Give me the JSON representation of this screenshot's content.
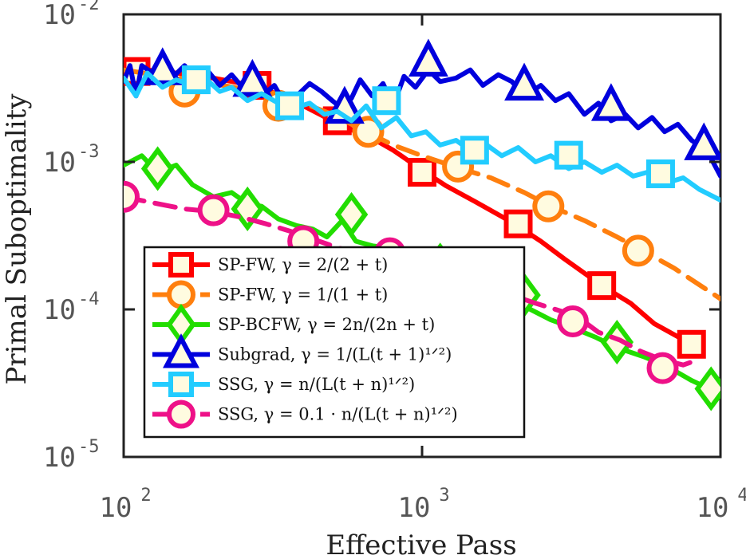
{
  "chart_data": {
    "type": "line",
    "xlabel": "Effective Pass",
    "ylabel": "Primal Suboptimality",
    "xscale": "log",
    "yscale": "log",
    "xlim": [
      100,
      10000
    ],
    "ylim": [
      1e-05,
      0.01
    ],
    "x_ticks": [
      {
        "base": "10",
        "exp": "2"
      },
      {
        "base": "10",
        "exp": "3"
      },
      {
        "base": "10",
        "exp": "4"
      }
    ],
    "y_ticks": [
      {
        "base": "10",
        "exp": "-2"
      },
      {
        "base": "10",
        "exp": "-3"
      },
      {
        "base": "10",
        "exp": "-4"
      },
      {
        "base": "10",
        "exp": "-5"
      }
    ],
    "legend_position": "lower-left",
    "series": [
      {
        "name": "SP-FW, γ = 2/(2 + t)",
        "color": "#ff0000",
        "dash": "solid",
        "marker": "square",
        "x": [
          100,
          120,
          150,
          200,
          250,
          300,
          350,
          400,
          500,
          600,
          700,
          800,
          1000,
          1200,
          1500,
          2000,
          2500,
          3000,
          4000,
          5000,
          6000,
          8000,
          8500
        ],
        "y": [
          0.0042,
          0.0042,
          0.004,
          0.0037,
          0.0034,
          0.0031,
          0.0027,
          0.0024,
          0.0019,
          0.0016,
          0.0014,
          0.0012,
          0.00088,
          0.00069,
          0.00054,
          0.00039,
          0.00029,
          0.00022,
          0.000145,
          0.00011,
          8e-05,
          5.8e-05,
          5e-05
        ],
        "markers_x": [
          110,
          280,
          520,
          1000,
          2100,
          4000,
          8000
        ],
        "markers_y": [
          0.0041,
          0.0033,
          0.0019,
          0.00085,
          0.00038,
          0.000145,
          5.8e-05
        ]
      },
      {
        "name": "SP-FW, γ = 1/(1 + t)",
        "color": "#ff7f0e",
        "dash": "dashed",
        "marker": "circle",
        "x": [
          100,
          150,
          200,
          300,
          400,
          500,
          650,
          800,
          1000,
          1300,
          1700,
          2200,
          2700,
          3500,
          4500,
          5500,
          7000,
          10000
        ],
        "y": [
          0.0042,
          0.0037,
          0.0034,
          0.0029,
          0.0025,
          0.0021,
          0.0016,
          0.0013,
          0.0011,
          0.00092,
          0.00078,
          0.00062,
          0.0005,
          0.0004,
          0.00031,
          0.00025,
          0.00019,
          0.000118
        ],
        "markers_x": [
          160,
          330,
          660,
          1320,
          2650,
          5300
        ],
        "markers_y": [
          0.003,
          0.0024,
          0.0016,
          0.00093,
          0.0005,
          0.00025
        ]
      },
      {
        "name": "SP-BCFW, γ = 2n/(2n + t)",
        "color": "#22dd00",
        "dash": "solid",
        "marker": "diamond",
        "x": [
          100,
          115,
          130,
          150,
          170,
          200,
          230,
          260,
          290,
          330,
          380,
          430,
          480,
          540,
          600,
          680,
          780,
          900,
          1050,
          1250,
          1500,
          1800,
          2200,
          2700,
          3200,
          3800,
          4500,
          5500,
          6500,
          8000,
          9500
        ],
        "y": [
          0.00095,
          0.0011,
          0.00085,
          0.00095,
          0.0007,
          0.00058,
          0.00062,
          0.00052,
          0.0005,
          0.00041,
          0.00037,
          0.00035,
          0.00031,
          0.0004,
          0.00029,
          0.00027,
          0.00026,
          0.00023,
          0.00019,
          0.00016,
          0.00014,
          0.00012,
          0.000105,
          8.5e-05,
          7.5e-05,
          6.5e-05,
          5.5e-05,
          4.8e-05,
          4.2e-05,
          3.3e-05,
          2.8e-05
        ],
        "markers_x": [
          130,
          260,
          580,
          1150,
          2200,
          4500,
          9300
        ],
        "markers_y": [
          0.0009,
          0.00048,
          0.00044,
          0.0002,
          0.000125,
          6e-05,
          2.9e-05
        ]
      },
      {
        "name": "Subgrad, γ = 1/(L(t + 1)^{1/2})",
        "color": "#0000dd",
        "dash": "solid",
        "marker": "triangle",
        "x": [
          100,
          105,
          110,
          115,
          125,
          135,
          145,
          160,
          175,
          190,
          210,
          230,
          250,
          270,
          290,
          320,
          350,
          380,
          420,
          460,
          500,
          540,
          580,
          620,
          680,
          740,
          800,
          870,
          950,
          1050,
          1150,
          1300,
          1450,
          1600,
          1800,
          2000,
          2200,
          2500,
          2800,
          3100,
          3500,
          3900,
          4300,
          4800,
          5300,
          5900,
          6500,
          7200,
          8000,
          9000,
          10000
        ],
        "y": [
          0.0035,
          0.0045,
          0.0028,
          0.0045,
          0.004,
          0.0042,
          0.0037,
          0.0045,
          0.0035,
          0.0042,
          0.0033,
          0.0039,
          0.0032,
          0.0038,
          0.0028,
          0.0033,
          0.0024,
          0.0028,
          0.0034,
          0.003,
          0.0026,
          0.0023,
          0.0027,
          0.0036,
          0.0028,
          0.0034,
          0.0024,
          0.0038,
          0.0032,
          0.0042,
          0.0035,
          0.0037,
          0.0042,
          0.0033,
          0.0039,
          0.0035,
          0.0028,
          0.0033,
          0.0026,
          0.0029,
          0.0021,
          0.0025,
          0.0019,
          0.0021,
          0.0017,
          0.002,
          0.0016,
          0.0018,
          0.0014,
          0.0012,
          0.0008
        ],
        "markers_x": [
          135,
          270,
          550,
          1050,
          2200,
          4300,
          8800
        ],
        "markers_y": [
          0.0042,
          0.0035,
          0.0023,
          0.0048,
          0.0033,
          0.0024,
          0.0013
        ]
      },
      {
        "name": "SSG, γ = n/(L(t + n)^{1/2})",
        "color": "#22ccff",
        "dash": "solid",
        "marker": "square",
        "x": [
          100,
          110,
          120,
          135,
          150,
          170,
          190,
          210,
          230,
          260,
          290,
          330,
          370,
          420,
          470,
          520,
          580,
          650,
          730,
          820,
          920,
          1030,
          1150,
          1300,
          1450,
          1650,
          1850,
          2100,
          2400,
          2700,
          3100,
          3500,
          4000,
          4500,
          5100,
          5800,
          6600,
          7500,
          8500,
          10000
        ],
        "y": [
          0.0037,
          0.0028,
          0.004,
          0.0032,
          0.0036,
          0.0033,
          0.0036,
          0.003,
          0.0032,
          0.0026,
          0.0029,
          0.0025,
          0.0023,
          0.0025,
          0.0021,
          0.0022,
          0.0019,
          0.0024,
          0.0017,
          0.002,
          0.0015,
          0.0016,
          0.0013,
          0.0014,
          0.0012,
          0.0013,
          0.0011,
          0.00125,
          0.001,
          0.0011,
          0.0009,
          0.001,
          0.00085,
          0.00095,
          0.0008,
          0.00086,
          0.00072,
          0.00078,
          0.00065,
          0.00055
        ],
        "markers_x": [
          175,
          360,
          760,
          1500,
          3100,
          6300
        ],
        "markers_y": [
          0.0036,
          0.0024,
          0.0026,
          0.0012,
          0.00111,
          0.00083
        ]
      },
      {
        "name": "SSG, γ = 0.1 · n/(L(t + n)^{1/2})",
        "color": "#ee1188",
        "dash": "dashed",
        "marker": "circle",
        "x": [
          100,
          130,
          160,
          200,
          250,
          300,
          360,
          430,
          500,
          600,
          720,
          850,
          1000,
          1200,
          1400,
          1700,
          2000,
          2400,
          2800,
          3300,
          3900,
          4600,
          5400,
          6300,
          7500,
          8500
        ],
        "y": [
          0.00058,
          0.00052,
          0.00048,
          0.00046,
          0.00042,
          0.00038,
          0.00034,
          0.0003,
          0.00027,
          0.00024,
          0.00022,
          0.00021,
          0.00019,
          0.00017,
          0.00015,
          0.000135,
          0.000125,
          0.00011,
          0.0001,
          9e-05,
          7e-05,
          6.2e-05,
          5.2e-05,
          4.6e-05,
          4.2e-05,
          4.6e-05
        ],
        "markers_x": [
          100,
          200,
          400,
          780,
          1600,
          3200,
          6400
        ],
        "markers_y": [
          0.00058,
          0.00047,
          0.00029,
          0.00024,
          0.00012,
          8.3e-05,
          4e-05
        ]
      }
    ]
  }
}
